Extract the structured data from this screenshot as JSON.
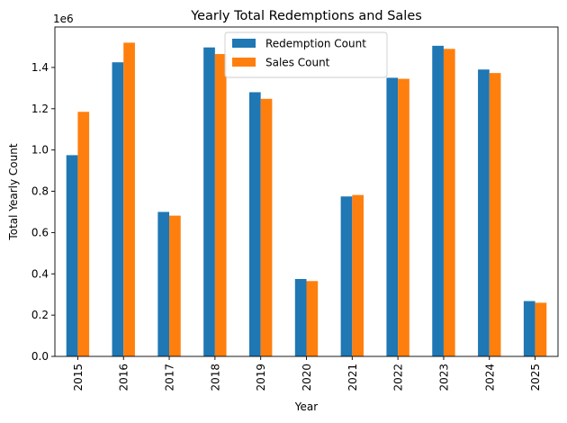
{
  "chart_data": {
    "type": "bar",
    "title": "Yearly Total Redemptions and Sales",
    "xlabel": "Year",
    "ylabel": "Total Yearly Count",
    "y_offset_label": "1e6",
    "y_scale_factor": 1000000,
    "ylim": [
      0,
      1596000
    ],
    "yticks": [
      0,
      200000,
      400000,
      600000,
      800000,
      1000000,
      1200000,
      1400000
    ],
    "ytick_labels": [
      "0.0",
      "0.2",
      "0.4",
      "0.6",
      "0.8",
      "1.0",
      "1.2",
      "1.4"
    ],
    "categories": [
      "2015",
      "2016",
      "2017",
      "2018",
      "2019",
      "2020",
      "2021",
      "2022",
      "2023",
      "2024",
      "2025"
    ],
    "legend_position": "top-center",
    "grid": false,
    "series": [
      {
        "name": "Redemption Count",
        "color": "#1f77b4",
        "values": [
          975000,
          1425000,
          700000,
          1497000,
          1280000,
          375000,
          775000,
          1350000,
          1505000,
          1390000,
          268000
        ]
      },
      {
        "name": "Sales Count",
        "color": "#ff7f0e",
        "values": [
          1185000,
          1520000,
          682000,
          1465000,
          1248000,
          365000,
          782000,
          1345000,
          1490000,
          1373000,
          260000
        ]
      }
    ]
  }
}
